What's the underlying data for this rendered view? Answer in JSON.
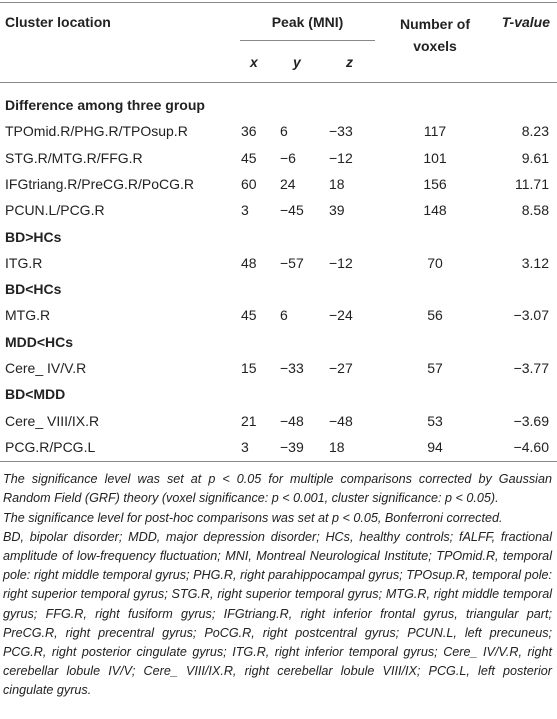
{
  "table": {
    "header": {
      "location": "Cluster location",
      "peak": "Peak (MNI)",
      "voxels": "Number of voxels",
      "tvalue": "T-value",
      "coords": [
        "x",
        "y",
        "z"
      ]
    },
    "sections": [
      {
        "title": "Difference among three group",
        "rows": [
          [
            "TPOmid.R/PHG.R/TPOsup.R",
            "36",
            "6",
            "−33",
            "117",
            "8.23"
          ],
          [
            "STG.R/MTG.R/FFG.R",
            "45",
            "−6",
            "−12",
            "101",
            "9.61"
          ],
          [
            "IFGtriang.R/PreCG.R/PoCG.R",
            "60",
            "24",
            "18",
            "156",
            "11.71"
          ],
          [
            "PCUN.L/PCG.R",
            "3",
            "−45",
            "39",
            "148",
            "8.58"
          ]
        ]
      },
      {
        "title": "BD>HCs",
        "rows": [
          [
            "ITG.R",
            "48",
            "−57",
            "−12",
            "70",
            "3.12"
          ]
        ]
      },
      {
        "title": "BD<HCs",
        "rows": [
          [
            "MTG.R",
            "45",
            "6",
            "−24",
            "56",
            "−3.07"
          ]
        ]
      },
      {
        "title": "MDD<HCs",
        "rows": [
          [
            "Cere_ IV/V.R",
            "15",
            "−33",
            "−27",
            "57",
            "−3.77"
          ]
        ]
      },
      {
        "title": "BD<MDD",
        "rows": [
          [
            "Cere_ VIII/IX.R",
            "21",
            "−48",
            "−48",
            "53",
            "−3.69"
          ],
          [
            "PCG.R/PCG.L",
            "3",
            "−39",
            "18",
            "94",
            "−4.60"
          ]
        ]
      }
    ],
    "notes": [
      "The significance level was set at p < 0.05 for multiple comparisons corrected by Gaussian Random Field (GRF) theory (voxel significance: p < 0.001, cluster significance: p < 0.05).",
      "The significance level for post-hoc comparisons was set at p < 0.05, Bonferroni corrected.",
      "BD, bipolar disorder; MDD, major depression disorder; HCs, healthy controls; fALFF, fractional amplitude of low-frequency fluctuation; MNI, Montreal Neurological Institute; TPOmid.R, temporal pole: right middle temporal gyrus; PHG.R, right parahippocampal gyrus; TPOsup.R, temporal pole: right superior temporal gyrus; STG.R, right superior temporal gyrus; MTG.R, right middle temporal gyrus; FFG.R, right fusiform gyrus; IFGtriang.R, right inferior frontal gyrus, triangular part; PreCG.R, right precentral gyrus; PoCG.R, right postcentral gyrus; PCUN.L, left precuneus; PCG.R, right posterior cingulate gyrus; ITG.R, right inferior temporal gyrus; Cere_ IV/V.R, right cerebellar lobule IV/V; Cere_ VIII/IX.R, right cerebellar lobule VIII/IX; PCG.L, left posterior cingulate gyrus."
    ]
  }
}
